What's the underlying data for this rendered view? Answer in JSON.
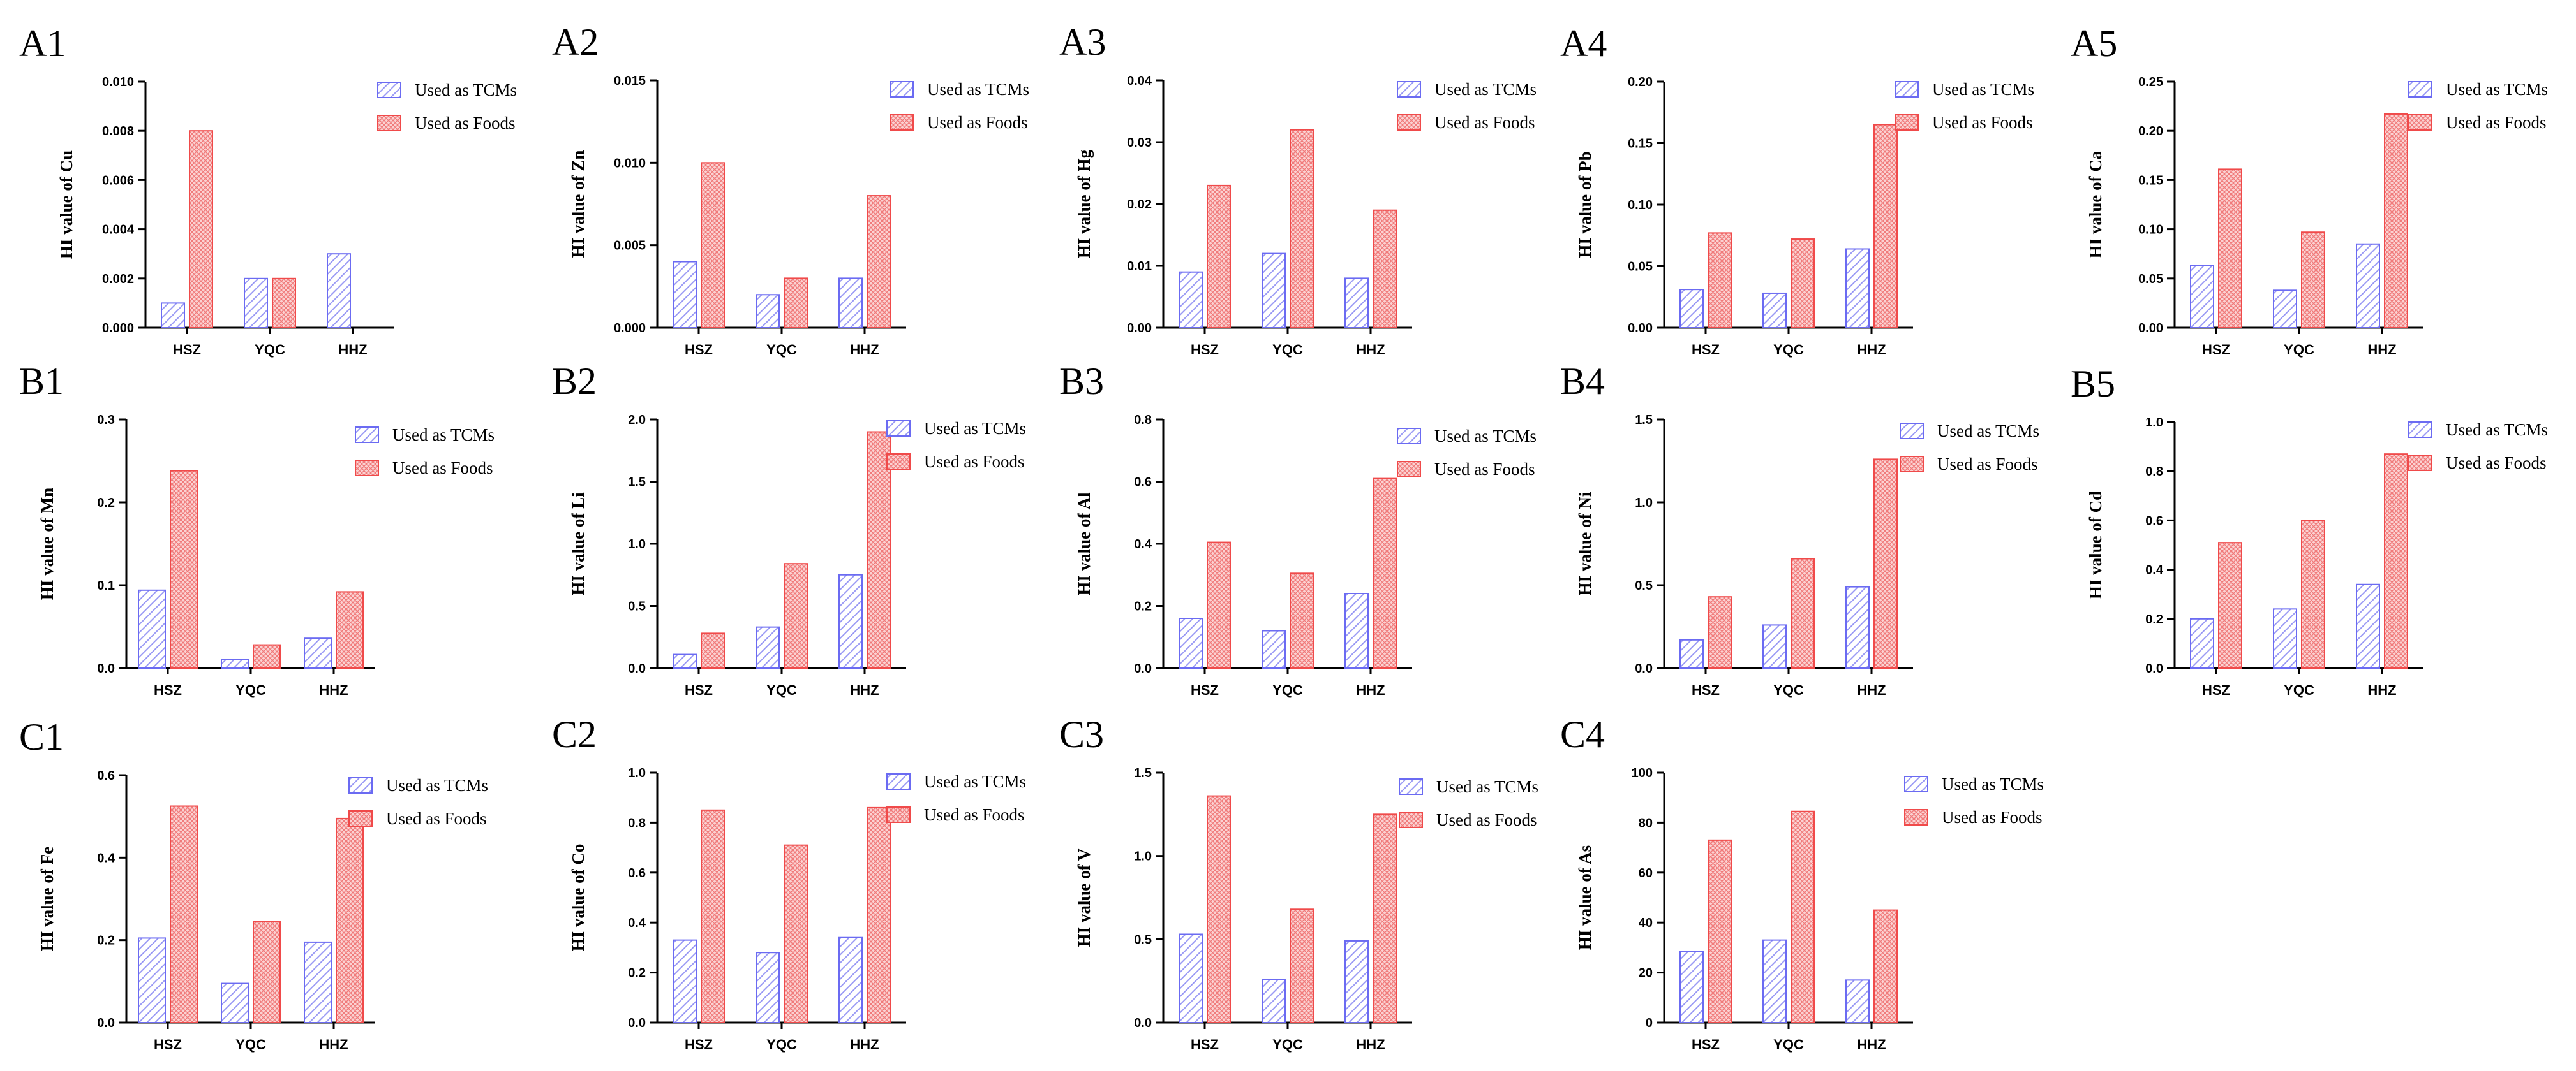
{
  "colors": {
    "tcm": "#6b6bf2",
    "food": "#f04a4a",
    "axis": "#000000"
  },
  "chart_data": [
    {
      "id": "A1",
      "type": "bar",
      "title": "A1",
      "ylabel": "HI value of Cu",
      "categories": [
        "HSZ",
        "YQC",
        "HHZ"
      ],
      "ylim": [
        0,
        0.01
      ],
      "yticks": [
        "0.000",
        "0.002",
        "0.004",
        "0.006",
        "0.008",
        "0.010"
      ],
      "series": [
        {
          "name": "Used as TCMs",
          "values": [
            0.001,
            0.002,
            0.003
          ]
        },
        {
          "name": "Used as Foods",
          "values": [
            0.008,
            0.002,
            0
          ]
        }
      ]
    },
    {
      "id": "A2",
      "type": "bar",
      "title": "A2",
      "ylabel": "HI value of Zn",
      "categories": [
        "HSZ",
        "YQC",
        "HHZ"
      ],
      "ylim": [
        0,
        0.015
      ],
      "yticks": [
        "0.000",
        "0.005",
        "0.010",
        "0.015"
      ],
      "series": [
        {
          "name": "Used as TCMs",
          "values": [
            0.004,
            0.002,
            0.003
          ]
        },
        {
          "name": "Used as Foods",
          "values": [
            0.01,
            0.003,
            0.008
          ]
        }
      ]
    },
    {
      "id": "A3",
      "type": "bar",
      "title": "A3",
      "ylabel": "HI value of Hg",
      "categories": [
        "HSZ",
        "YQC",
        "HHZ"
      ],
      "ylim": [
        0,
        0.04
      ],
      "yticks": [
        "0.00",
        "0.01",
        "0.02",
        "0.03",
        "0.04"
      ],
      "series": [
        {
          "name": "Used as TCMs",
          "values": [
            0.009,
            0.012,
            0.008
          ]
        },
        {
          "name": "Used as Foods",
          "values": [
            0.023,
            0.032,
            0.019
          ]
        }
      ]
    },
    {
      "id": "A4",
      "type": "bar",
      "title": "A4",
      "ylabel": "HI value of Pb",
      "categories": [
        "HSZ",
        "YQC",
        "HHZ"
      ],
      "ylim": [
        0,
        0.2
      ],
      "yticks": [
        "0.00",
        "0.05",
        "0.10",
        "0.15",
        "0.20"
      ],
      "series": [
        {
          "name": "Used as TCMs",
          "values": [
            0.031,
            0.028,
            0.064
          ]
        },
        {
          "name": "Used as Foods",
          "values": [
            0.077,
            0.072,
            0.165
          ]
        }
      ]
    },
    {
      "id": "A5",
      "type": "bar",
      "title": "A5",
      "ylabel": "HI value of Ca",
      "categories": [
        "HSZ",
        "YQC",
        "HHZ"
      ],
      "ylim": [
        0,
        0.25
      ],
      "yticks": [
        "0.00",
        "0.05",
        "0.10",
        "0.15",
        "0.20",
        "0.25"
      ],
      "series": [
        {
          "name": "Used as TCMs",
          "values": [
            0.063,
            0.038,
            0.085
          ]
        },
        {
          "name": "Used as Foods",
          "values": [
            0.161,
            0.097,
            0.217
          ]
        }
      ]
    },
    {
      "id": "B1",
      "type": "bar",
      "title": "B1",
      "ylabel": "HI value of Mn",
      "categories": [
        "HSZ",
        "YQC",
        "HHZ"
      ],
      "ylim": [
        0,
        0.3
      ],
      "yticks": [
        "0.0",
        "0.1",
        "0.2",
        "0.3"
      ],
      "series": [
        {
          "name": "Used as TCMs",
          "values": [
            0.094,
            0.01,
            0.036
          ]
        },
        {
          "name": "Used as Foods",
          "values": [
            0.238,
            0.028,
            0.092
          ]
        }
      ]
    },
    {
      "id": "B2",
      "type": "bar",
      "title": "B2",
      "ylabel": "HI value of Li",
      "categories": [
        "HSZ",
        "YQC",
        "HHZ"
      ],
      "ylim": [
        0,
        2.0
      ],
      "yticks": [
        "0.0",
        "0.5",
        "1.0",
        "1.5",
        "2.0"
      ],
      "series": [
        {
          "name": "Used as TCMs",
          "values": [
            0.11,
            0.33,
            0.75
          ]
        },
        {
          "name": "Used as Foods",
          "values": [
            0.28,
            0.84,
            1.9
          ]
        }
      ]
    },
    {
      "id": "B3",
      "type": "bar",
      "title": "B3",
      "ylabel": "HI value of Al",
      "categories": [
        "HSZ",
        "YQC",
        "HHZ"
      ],
      "ylim": [
        0,
        0.8
      ],
      "yticks": [
        "0.0",
        "0.2",
        "0.4",
        "0.6",
        "0.8"
      ],
      "series": [
        {
          "name": "Used as TCMs",
          "values": [
            0.16,
            0.12,
            0.24
          ]
        },
        {
          "name": "Used as Foods",
          "values": [
            0.405,
            0.305,
            0.61
          ]
        }
      ]
    },
    {
      "id": "B4",
      "type": "bar",
      "title": "B4",
      "ylabel": "HI value of Ni",
      "categories": [
        "HSZ",
        "YQC",
        "HHZ"
      ],
      "ylim": [
        0,
        1.5
      ],
      "yticks": [
        "0.0",
        "0.5",
        "1.0",
        "1.5"
      ],
      "series": [
        {
          "name": "Used as TCMs",
          "values": [
            0.17,
            0.26,
            0.49
          ]
        },
        {
          "name": "Used as Foods",
          "values": [
            0.43,
            0.66,
            1.26
          ]
        }
      ]
    },
    {
      "id": "B5",
      "type": "bar",
      "title": "B5",
      "ylabel": "HI value of Cd",
      "categories": [
        "HSZ",
        "YQC",
        "HHZ"
      ],
      "ylim": [
        0,
        1.0
      ],
      "yticks": [
        "0.0",
        "0.2",
        "0.4",
        "0.6",
        "0.8",
        "1.0"
      ],
      "series": [
        {
          "name": "Used as TCMs",
          "values": [
            0.2,
            0.24,
            0.34
          ]
        },
        {
          "name": "Used as Foods",
          "values": [
            0.51,
            0.6,
            0.87
          ]
        }
      ]
    },
    {
      "id": "C1",
      "type": "bar",
      "title": "C1",
      "ylabel": "HI value of Fe",
      "categories": [
        "HSZ",
        "YQC",
        "HHZ"
      ],
      "ylim": [
        0,
        0.6
      ],
      "yticks": [
        "0.0",
        "0.2",
        "0.4",
        "0.6"
      ],
      "series": [
        {
          "name": "Used as TCMs",
          "values": [
            0.205,
            0.095,
            0.195
          ]
        },
        {
          "name": "Used as Foods",
          "values": [
            0.525,
            0.245,
            0.495
          ]
        }
      ]
    },
    {
      "id": "C2",
      "type": "bar",
      "title": "C2",
      "ylabel": "HI value of Co",
      "categories": [
        "HSZ",
        "YQC",
        "HHZ"
      ],
      "ylim": [
        0,
        1.0
      ],
      "yticks": [
        "0.0",
        "0.2",
        "0.4",
        "0.6",
        "0.8",
        "1.0"
      ],
      "series": [
        {
          "name": "Used as TCMs",
          "values": [
            0.33,
            0.28,
            0.34
          ]
        },
        {
          "name": "Used as Foods",
          "values": [
            0.85,
            0.71,
            0.86
          ]
        }
      ]
    },
    {
      "id": "C3",
      "type": "bar",
      "title": "C3",
      "ylabel": "HI value of V",
      "categories": [
        "HSZ",
        "YQC",
        "HHZ"
      ],
      "ylim": [
        0,
        1.5
      ],
      "yticks": [
        "0.0",
        "0.5",
        "1.0",
        "1.5"
      ],
      "series": [
        {
          "name": "Used as TCMs",
          "values": [
            0.53,
            0.26,
            0.49
          ]
        },
        {
          "name": "Used as Foods",
          "values": [
            1.36,
            0.68,
            1.25
          ]
        }
      ]
    },
    {
      "id": "C4",
      "type": "bar",
      "title": "C4",
      "ylabel": "HI value of As",
      "categories": [
        "HSZ",
        "YQC",
        "HHZ"
      ],
      "ylim": [
        0,
        100
      ],
      "yticks": [
        "0",
        "20",
        "40",
        "60",
        "80",
        "100"
      ],
      "series": [
        {
          "name": "Used as TCMs",
          "values": [
            28.5,
            33,
            17
          ]
        },
        {
          "name": "Used as Foods",
          "values": [
            73,
            84.5,
            45
          ]
        }
      ]
    }
  ]
}
